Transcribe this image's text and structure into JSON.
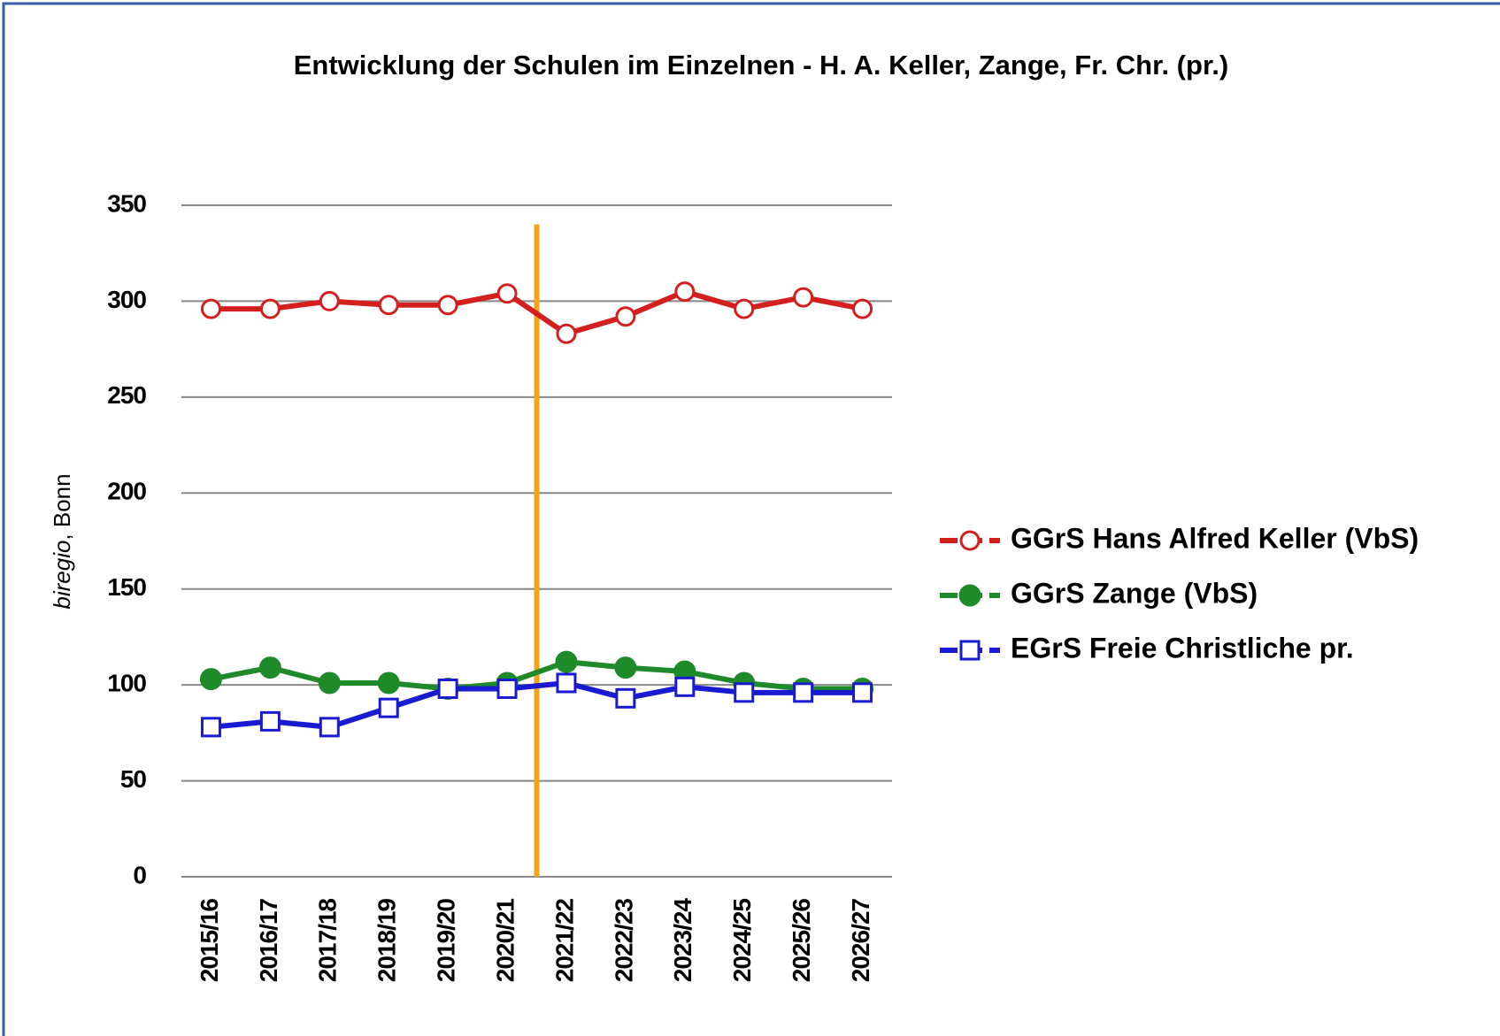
{
  "chart_data": {
    "type": "line",
    "title": "Entwicklung der Schulen im Einzelnen - H. A. Keller, Zange, Fr. Chr. (pr.)",
    "y_label": [
      "biregio",
      ", Bonn"
    ],
    "categories": [
      "2015/16",
      "2016/17",
      "2017/18",
      "2018/19",
      "2019/20",
      "2020/21",
      "2021/22",
      "2022/23",
      "2023/24",
      "2024/25",
      "2025/26",
      "2026/27"
    ],
    "series": [
      {
        "name": "GGrS Hans Alfred Keller (VbS)",
        "color": "#d41f1f",
        "marker": "circle-open",
        "values": [
          296,
          296,
          300,
          298,
          298,
          304,
          283,
          292,
          305,
          296,
          302,
          296
        ]
      },
      {
        "name": "GGrS Zange (VbS)",
        "color": "#1e8a2a",
        "marker": "circle-filled",
        "values": [
          103,
          109,
          101,
          101,
          98,
          101,
          112,
          109,
          107,
          101,
          98,
          98
        ]
      },
      {
        "name": "EGrS Freie Christliche pr.",
        "color": "#1a1ad0",
        "marker": "square-open",
        "values": [
          78,
          81,
          78,
          88,
          98,
          98,
          101,
          93,
          99,
          96,
          96,
          96
        ]
      }
    ],
    "ylim": [
      0,
      350
    ],
    "yticks": [
      0,
      50,
      100,
      150,
      200,
      250,
      300,
      350
    ],
    "grid": true,
    "legend": "right",
    "vline": {
      "between": [
        "2020/21",
        "2021/22"
      ],
      "ylim": [
        0,
        340
      ],
      "color": "#f5a31a"
    }
  }
}
